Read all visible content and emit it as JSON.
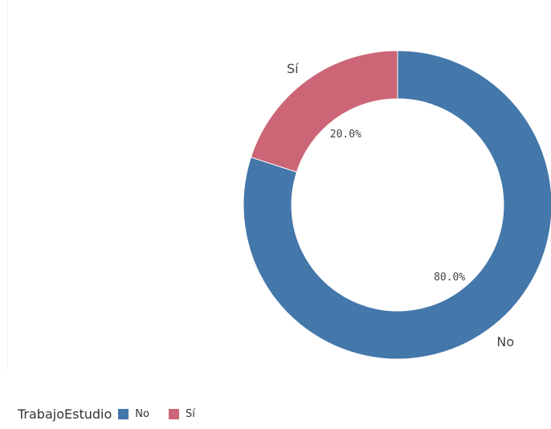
{
  "chart_data": {
    "type": "pie",
    "donut": true,
    "title": "",
    "categories": [
      "No",
      "Sí"
    ],
    "values": [
      80.0,
      20.0
    ],
    "value_labels": [
      "80.0%",
      "20.0%"
    ],
    "colors": [
      "#4477aa",
      "#cc6677"
    ],
    "legend_title": "TrabajoEstudio",
    "legend_placement": "bottom-left",
    "start": "top",
    "direction": "clockwise"
  }
}
